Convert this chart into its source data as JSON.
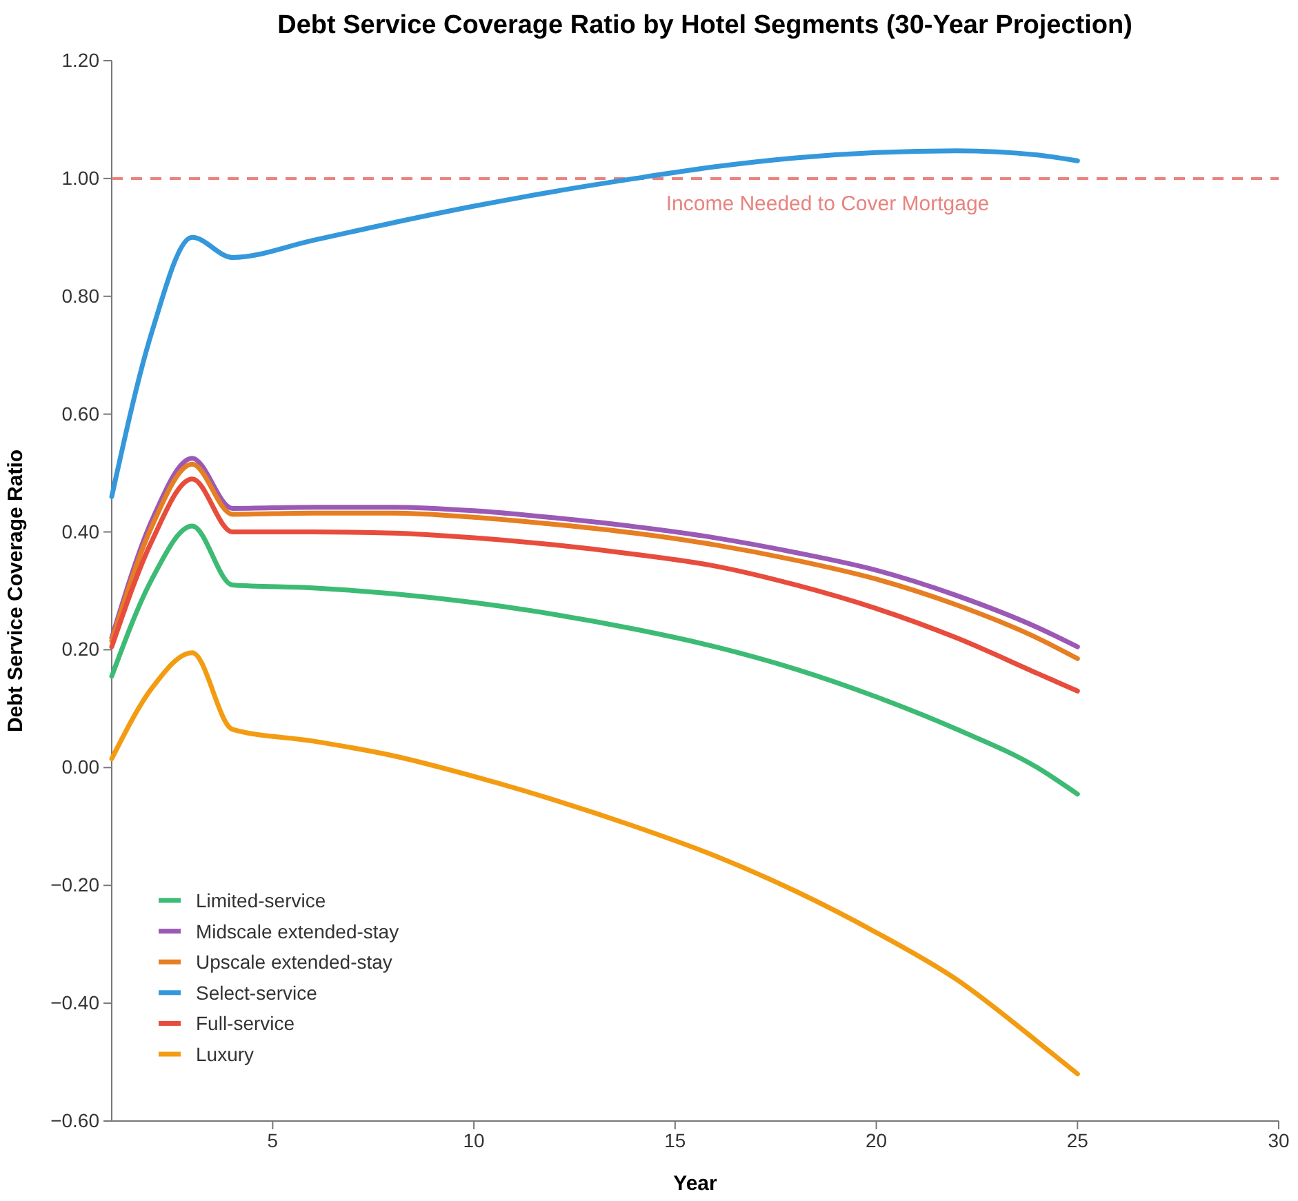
{
  "chart_data": {
    "type": "line",
    "title": "Debt Service Coverage Ratio by Hotel Segments (30-Year Projection)",
    "xlabel": "Year",
    "ylabel": "Debt Service Coverage Ratio",
    "x": [
      1,
      2,
      3,
      4,
      6,
      8,
      10,
      12,
      14,
      16,
      18,
      20,
      22,
      24,
      25
    ],
    "series": [
      {
        "name": "Limited-service",
        "color": "#3dbb74",
        "values": [
          0.155,
          0.32,
          0.41,
          0.31,
          0.305,
          0.295,
          0.28,
          0.26,
          0.235,
          0.205,
          0.167,
          0.12,
          0.065,
          0.0,
          -0.045
        ]
      },
      {
        "name": "Midscale extended-stay",
        "color": "#9b59b6",
        "values": [
          0.22,
          0.42,
          0.525,
          0.44,
          0.442,
          0.442,
          0.436,
          0.424,
          0.409,
          0.39,
          0.365,
          0.335,
          0.292,
          0.238,
          0.205
        ]
      },
      {
        "name": "Upscale extended-stay",
        "color": "#e67e22",
        "values": [
          0.215,
          0.41,
          0.515,
          0.43,
          0.432,
          0.432,
          0.425,
          0.413,
          0.398,
          0.378,
          0.352,
          0.32,
          0.276,
          0.22,
          0.185
        ]
      },
      {
        "name": "Select-service",
        "color": "#3498db",
        "values": [
          0.46,
          0.74,
          0.9,
          0.866,
          0.895,
          0.925,
          0.953,
          0.978,
          1.0,
          1.02,
          1.035,
          1.044,
          1.047,
          1.04,
          1.03
        ]
      },
      {
        "name": "Full-service",
        "color": "#e74c3c",
        "values": [
          0.205,
          0.385,
          0.49,
          0.4,
          0.4,
          0.398,
          0.39,
          0.378,
          0.362,
          0.342,
          0.31,
          0.27,
          0.22,
          0.16,
          0.13
        ]
      },
      {
        "name": "Luxury",
        "color": "#f39c12",
        "values": [
          0.015,
          0.135,
          0.195,
          0.065,
          0.045,
          0.02,
          -0.015,
          -0.055,
          -0.1,
          -0.15,
          -0.21,
          -0.28,
          -0.36,
          -0.465,
          -0.52
        ]
      }
    ],
    "xlim": [
      1,
      30
    ],
    "xticks": [
      5,
      10,
      15,
      20,
      25,
      30
    ],
    "ylim": [
      -0.6,
      1.2
    ],
    "yticks": [
      {
        "value": -0.6,
        "label": "−0.60"
      },
      {
        "value": -0.4,
        "label": "−0.40"
      },
      {
        "value": -0.2,
        "label": "−0.20"
      },
      {
        "value": 0,
        "label": "0.00"
      },
      {
        "value": 0.2,
        "label": "0.20"
      },
      {
        "value": 0.4,
        "label": "0.40"
      },
      {
        "value": 0.6,
        "label": "0.60"
      },
      {
        "value": 0.8,
        "label": "0.80"
      },
      {
        "value": 1,
        "label": "1.00"
      },
      {
        "value": 1.2,
        "label": "1.20"
      }
    ],
    "ref_lines": [
      {
        "axis": "y",
        "value": 1,
        "label": "Income Needed to Cover Mortgage",
        "color": "#e8837f",
        "line_style": "dashed"
      }
    ],
    "legend": "bottom left",
    "grid": false,
    "marker": "none",
    "line_style": "solid"
  }
}
